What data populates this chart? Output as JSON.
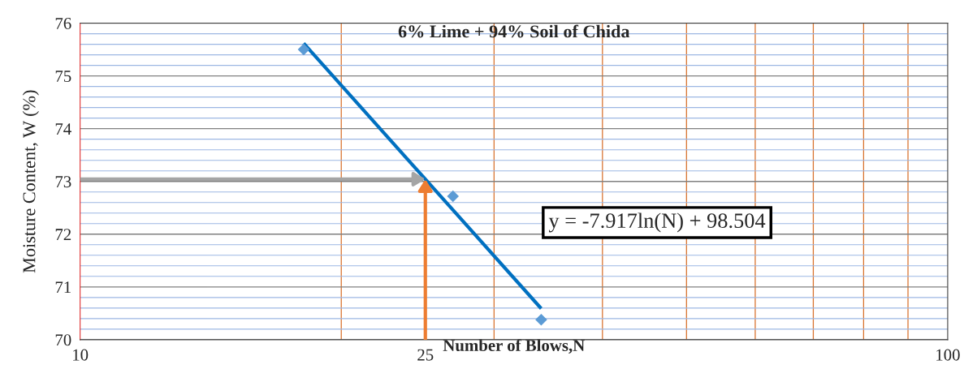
{
  "chart_data": {
    "type": "scatter",
    "title": "6% Lime + 94% Soil of Chida",
    "xlabel": "Number of Blows,N",
    "ylabel": "Moisture Content, W (%)",
    "log": "x",
    "xlim": [
      10,
      100
    ],
    "xticks": [
      10,
      {
        "value": 20,
        "label": null
      },
      25,
      {
        "value": 30,
        "label": null
      },
      {
        "value": 40,
        "label": null
      },
      {
        "value": 50,
        "label": null
      },
      {
        "value": 60,
        "label": null
      },
      {
        "value": 70,
        "label": null
      },
      {
        "value": 80,
        "label": null
      },
      {
        "value": 90,
        "label": null
      },
      100
    ],
    "ylim": [
      70,
      76
    ],
    "yticks": [
      70,
      {
        "value": 70.2,
        "label": null
      },
      {
        "value": 70.4,
        "label": null
      },
      {
        "value": 70.6,
        "label": null
      },
      {
        "value": 70.8,
        "label": null
      },
      71,
      {
        "value": 71.2,
        "label": null
      },
      {
        "value": 71.4,
        "label": null
      },
      {
        "value": 71.6,
        "label": null
      },
      {
        "value": 71.8,
        "label": null
      },
      72,
      {
        "value": 72.2,
        "label": null
      },
      {
        "value": 72.4,
        "label": null
      },
      {
        "value": 72.6,
        "label": null
      },
      {
        "value": 72.8,
        "label": null
      },
      73,
      {
        "value": 73.2,
        "label": null
      },
      {
        "value": 73.4,
        "label": null
      },
      {
        "value": 73.6,
        "label": null
      },
      {
        "value": 73.8,
        "label": null
      },
      74,
      {
        "value": 74.2,
        "label": null
      },
      {
        "value": 74.4,
        "label": null
      },
      {
        "value": 74.6,
        "label": null
      },
      {
        "value": 74.8,
        "label": null
      },
      75,
      {
        "value": 75.2,
        "label": null
      },
      {
        "value": 75.4,
        "label": null
      },
      {
        "value": 75.6,
        "label": null
      },
      {
        "value": 75.8,
        "label": null
      },
      76
    ],
    "grid": true,
    "series": [
      {
        "color": "#5b9bd5",
        "marker": "diamond",
        "x": [
          18.1,
          26.9,
          34.0
        ],
        "values": [
          75.5,
          72.72,
          70.38
        ]
      },
      {
        "type": "line",
        "color": "#0070c0",
        "x": [
          18.1,
          34.0
        ],
        "values": [
          75.62,
          70.59
        ]
      }
    ],
    "annotations": [
      "y = -7.917ln(N) + 98.504"
    ]
  }
}
